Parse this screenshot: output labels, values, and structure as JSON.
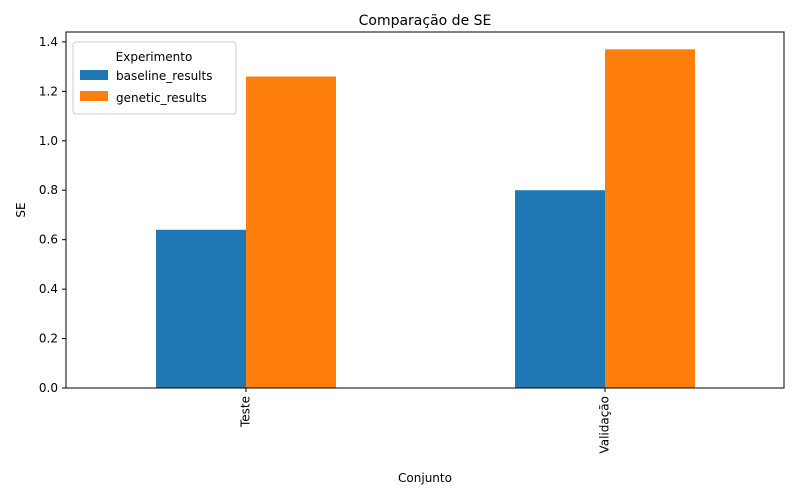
{
  "chart_data": {
    "type": "bar",
    "title": "Comparação de SE",
    "xlabel": "Conjunto",
    "ylabel": "SE",
    "categories": [
      "Teste",
      "Validação"
    ],
    "series": [
      {
        "name": "baseline_results",
        "color": "#1f77b4",
        "values": [
          0.64,
          0.8
        ]
      },
      {
        "name": "genetic_results",
        "color": "#ff7f0e",
        "values": [
          1.26,
          1.37
        ]
      }
    ],
    "ylim": [
      0,
      1.44
    ],
    "yticks": [
      0.0,
      0.2,
      0.4,
      0.6,
      0.8,
      1.0,
      1.2,
      1.4
    ],
    "ytick_labels": [
      "0.0",
      "0.2",
      "0.4",
      "0.6",
      "0.8",
      "1.0",
      "1.2",
      "1.4"
    ],
    "grid": false,
    "legend": {
      "title": "Experimento",
      "placement": "top-left"
    }
  }
}
